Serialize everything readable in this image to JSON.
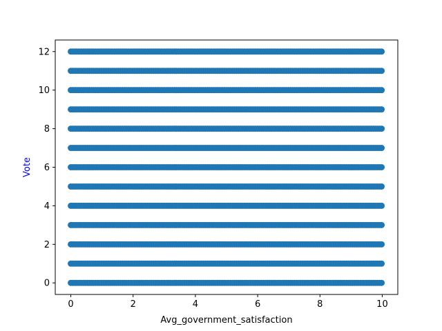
{
  "chart_data": {
    "type": "scatter",
    "title": "",
    "xlabel": "Avg_government_satisfaction",
    "ylabel": "Vote",
    "ylabel_color": "#0000ff",
    "marker_color": "#1f77b4",
    "xlim": [
      -0.5,
      10.5
    ],
    "ylim": [
      -0.6,
      12.6
    ],
    "x_ticks": [
      0,
      2,
      4,
      6,
      8,
      10
    ],
    "y_ticks": [
      0,
      2,
      4,
      6,
      8,
      10,
      12
    ],
    "x_tick_labels": [
      "0",
      "2",
      "4",
      "6",
      "8",
      "10"
    ],
    "y_tick_labels": [
      "0",
      "2",
      "4",
      "6",
      "8",
      "10",
      "12"
    ],
    "grid": false,
    "legend": "none",
    "series": [
      {
        "vote_values": [
          0,
          1,
          2,
          3,
          4,
          5,
          6,
          7,
          8,
          9,
          10,
          11,
          12
        ],
        "x_range_per_row": [
          [
            0,
            10
          ],
          [
            0,
            10
          ],
          [
            0,
            10
          ],
          [
            0,
            10
          ],
          [
            0,
            10
          ],
          [
            0,
            10
          ],
          [
            0,
            10
          ],
          [
            0,
            10
          ],
          [
            0,
            10
          ],
          [
            0,
            10
          ],
          [
            0,
            10
          ],
          [
            0,
            10
          ],
          [
            0,
            10
          ]
        ]
      }
    ]
  }
}
